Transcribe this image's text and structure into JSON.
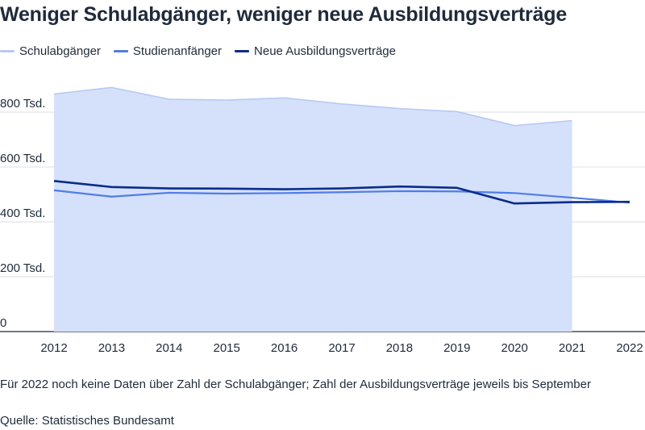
{
  "title": "Weniger Schulabgänger, weniger neue Ausbildungsverträge",
  "note": "Für 2022 noch keine Daten über Zahl der Schulabgänger; Zahl der Ausbildungsverträge jeweils bis September",
  "source": "Quelle: Statistisches Bundesamt",
  "colors": {
    "schulabgaenger_line": "#b8c9f2",
    "schulabgaenger_fill": "#d5e0fb",
    "studienanfaenger": "#4f7de8",
    "ausbildung": "#0b2d8a",
    "grid": "#d9dde6",
    "axis": "#1f2a3a"
  },
  "chart_data": {
    "type": "line",
    "title": "Weniger Schulabgänger, weniger neue Ausbildungsverträge",
    "x": [
      "2012",
      "2013",
      "2014",
      "2015",
      "2016",
      "2017",
      "2018",
      "2019",
      "2020",
      "2021",
      "2022"
    ],
    "y_ticks": [
      {
        "value": 0,
        "label": "0"
      },
      {
        "value": 200,
        "label": "200 Tsd."
      },
      {
        "value": 400,
        "label": "400 Tsd."
      },
      {
        "value": 600,
        "label": "600 Tsd."
      },
      {
        "value": 800,
        "label": "800 Tsd."
      }
    ],
    "ylim": [
      0,
      900
    ],
    "unit": "Tsd.",
    "grid": true,
    "legend_position": "top-left",
    "series": [
      {
        "name": "Schulabgänger",
        "style": "area",
        "values": [
          866,
          890,
          847,
          844,
          852,
          830,
          813,
          802,
          751,
          769,
          null
        ]
      },
      {
        "name": "Studienanfänger",
        "style": "line",
        "values": [
          515,
          492,
          506,
          503,
          505,
          508,
          512,
          511,
          505,
          488,
          470
        ]
      },
      {
        "name": "Neue Ausbildungsverträge",
        "style": "line",
        "values": [
          549,
          527,
          522,
          521,
          519,
          522,
          529,
          524,
          467,
          472,
          473
        ]
      }
    ]
  }
}
